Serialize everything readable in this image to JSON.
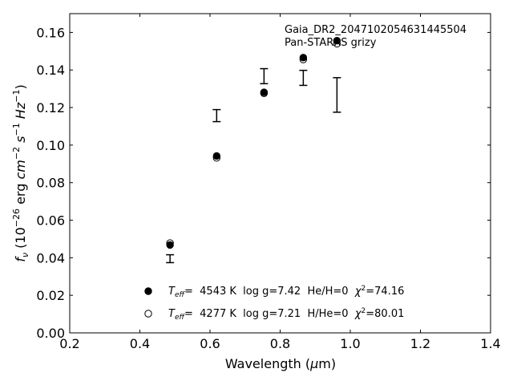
{
  "chart_data": {
    "type": "scatter",
    "annotation": [
      "Gaia_DR2_2047102054631445504",
      "Pan-STARRS grizy"
    ],
    "xlabel": "Wavelength (μm)",
    "ylabel": "f_ν (10^-26 erg cm^-2 s^-1 Hz^-1)",
    "xlim": [
      0.2,
      1.4
    ],
    "ylim": [
      0.0,
      0.17
    ],
    "xticks": [
      0.2,
      0.4,
      0.6,
      0.8,
      1.0,
      1.2,
      1.4
    ],
    "xtick_labels": [
      "0.2",
      "0.4",
      "0.6",
      "0.8",
      "1.0",
      "1.2",
      "1.4"
    ],
    "yticks": [
      0.0,
      0.02,
      0.04,
      0.06,
      0.08,
      0.1,
      0.12,
      0.14,
      0.16
    ],
    "ytick_labels": [
      "0.00",
      "0.02",
      "0.04",
      "0.06",
      "0.08",
      "0.10",
      "0.12",
      "0.14",
      "0.16"
    ],
    "grid": false,
    "observed": {
      "x": [
        0.486,
        0.619,
        0.754,
        0.866,
        0.962
      ],
      "y_low": [
        0.0374,
        0.1125,
        0.1327,
        0.1318,
        0.1175
      ],
      "y_high": [
        0.0416,
        0.1189,
        0.1407,
        0.1398,
        0.1359
      ]
    },
    "series": [
      {
        "marker": "filled-circle",
        "x": [
          0.486,
          0.619,
          0.754,
          0.866,
          0.962
        ],
        "y": [
          0.0468,
          0.0942,
          0.1281,
          0.1466,
          0.1556
        ],
        "legend_parts": [
          "T",
          "eff",
          "=  4543 K  log g=7.42  He/H=0  ",
          "χ",
          "2",
          "=74.16"
        ]
      },
      {
        "marker": "open-circle",
        "x": [
          0.486,
          0.619,
          0.754,
          0.866,
          0.962
        ],
        "y": [
          0.0478,
          0.0932,
          0.1276,
          0.1456,
          0.154
        ],
        "legend_parts": [
          "T",
          "eff",
          "=  4277 K  log g=7.21  H/He=0  ",
          "χ",
          "2",
          "=80.01"
        ]
      }
    ],
    "legend_position": "lower-center"
  }
}
